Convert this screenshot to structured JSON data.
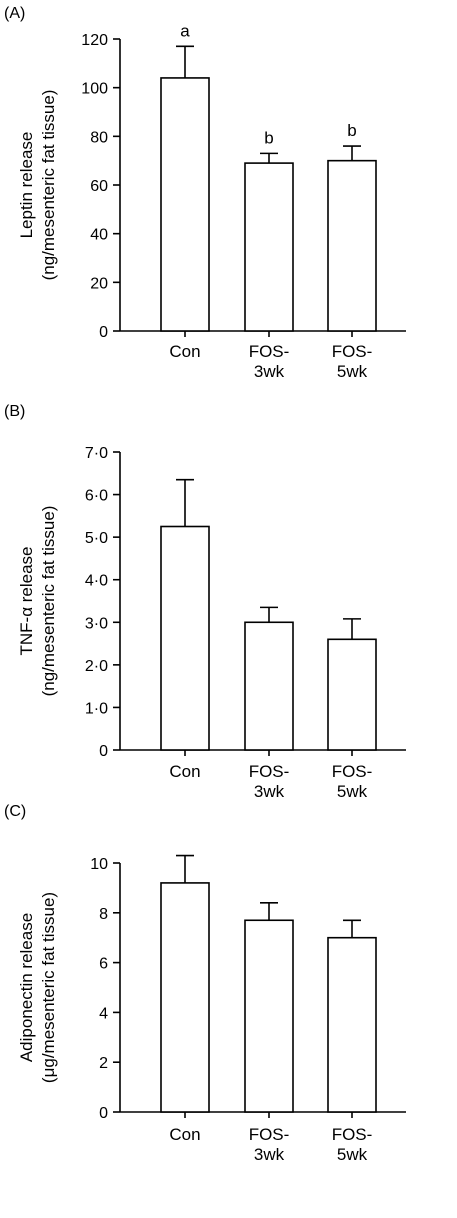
{
  "chart_data": [
    {
      "panel_label": "(A)",
      "type": "bar",
      "categories": [
        [
          "Con"
        ],
        [
          "FOS-",
          "3wk"
        ],
        [
          "FOS-",
          "5wk"
        ]
      ],
      "values": [
        104,
        69,
        70
      ],
      "errors": [
        13,
        4,
        6
      ],
      "significance": [
        "a",
        "b",
        "b"
      ],
      "ylabel": [
        "Leptin release",
        "(ng/mesenteric fat tissue)"
      ],
      "ylim": [
        0,
        120
      ],
      "yticks": [
        0,
        20,
        40,
        60,
        80,
        100,
        120
      ],
      "ytick_labels": [
        "0",
        "20",
        "40",
        "60",
        "80",
        "100",
        "120"
      ],
      "grid": false
    },
    {
      "panel_label": "(B)",
      "type": "bar",
      "categories": [
        [
          "Con"
        ],
        [
          "FOS-",
          "3wk"
        ],
        [
          "FOS-",
          "5wk"
        ]
      ],
      "values": [
        5.25,
        3.0,
        2.6
      ],
      "errors": [
        1.1,
        0.35,
        0.48
      ],
      "significance": [
        "",
        "",
        ""
      ],
      "ylabel": [
        "TNF-α release",
        "(ng/mesenteric fat tissue)"
      ],
      "ylim": [
        0,
        7
      ],
      "yticks": [
        0,
        1,
        2,
        3,
        4,
        5,
        6,
        7
      ],
      "ytick_labels": [
        "0",
        "1·0",
        "2·0",
        "3·0",
        "4·0",
        "5·0",
        "6·0",
        "7·0"
      ],
      "grid": false
    },
    {
      "panel_label": "(C)",
      "type": "bar",
      "categories": [
        [
          "Con"
        ],
        [
          "FOS-",
          "3wk"
        ],
        [
          "FOS-",
          "5wk"
        ]
      ],
      "values": [
        9.2,
        7.7,
        7.0
      ],
      "errors": [
        1.1,
        0.7,
        0.7
      ],
      "significance": [
        "",
        "",
        ""
      ],
      "ylabel": [
        "Adiponectin release",
        "(μg/mesenteric fat tissue)"
      ],
      "ylim": [
        0,
        10
      ],
      "yticks": [
        0,
        2,
        4,
        6,
        8,
        10
      ],
      "ytick_labels": [
        "0",
        "2",
        "4",
        "6",
        "8",
        "10"
      ],
      "grid": false
    }
  ]
}
